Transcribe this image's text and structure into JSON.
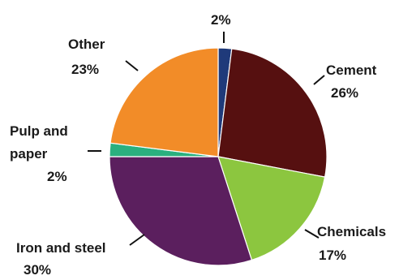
{
  "chart_data": {
    "type": "pie",
    "title": "",
    "start_angle_deg": 0,
    "slices": [
      {
        "label": "",
        "percent_text": "2%",
        "value": 2,
        "color": "#1f3a7a"
      },
      {
        "label": "Cement",
        "percent_text": "26%",
        "value": 26,
        "color": "#561010"
      },
      {
        "label": "Chemicals",
        "percent_text": "17%",
        "value": 17,
        "color": "#8cc63f"
      },
      {
        "label": "Iron and steel",
        "percent_text": "30%",
        "value": 30,
        "color": "#5b1f5e"
      },
      {
        "label": "Pulp and paper",
        "percent_text": "2%",
        "value": 2,
        "color": "#2ab07f"
      },
      {
        "label": "Other",
        "percent_text": "23%",
        "value": 23,
        "color": "#f28c28"
      }
    ]
  }
}
